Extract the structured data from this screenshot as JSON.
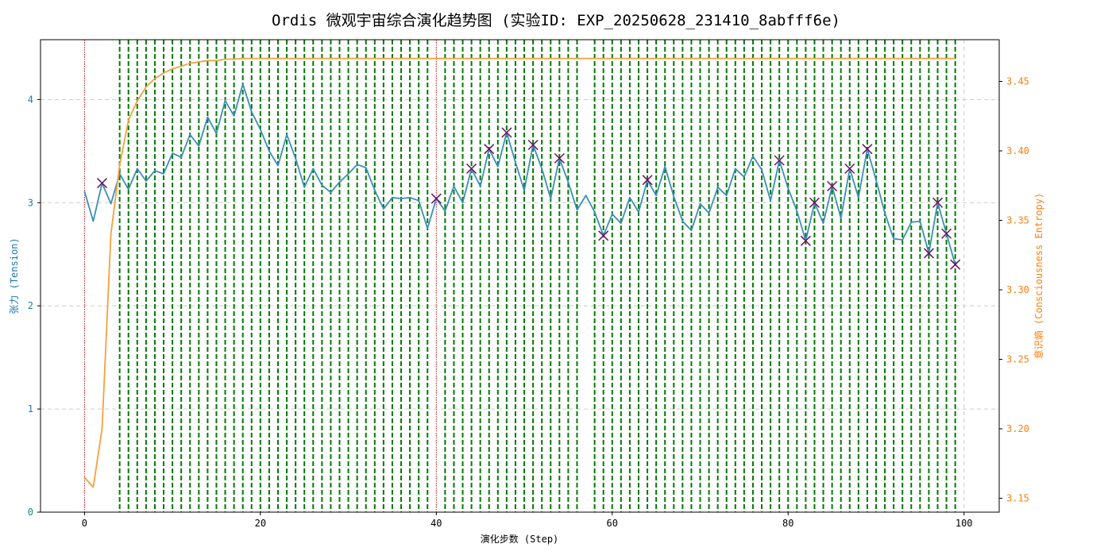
{
  "chart_data": {
    "type": "line",
    "title": "Ordis 微观宇宙综合演化趋势图 (实验ID: EXP_20250628_231410_8abfff6e)",
    "xlabel": "演化步数 (Step)",
    "ylabel_left": "张力 (Tension)",
    "ylabel_right": "意识熵 (Consciousness Entropy)",
    "xlim": [
      -5,
      104
    ],
    "ylim_left": [
      0,
      4.58
    ],
    "ylim_right": [
      3.14,
      3.48
    ],
    "x_ticks": [
      0,
      20,
      40,
      60,
      80,
      100
    ],
    "y_ticks_left": [
      0,
      1,
      2,
      3,
      4
    ],
    "y_ticks_right": [
      3.15,
      3.2,
      3.25,
      3.3,
      3.35,
      3.4,
      3.45
    ],
    "grid": true,
    "colors": {
      "tension": "#3a8fb7",
      "entropy": "#f4a03c",
      "left_axis_label": "#1f77b4",
      "right_axis_label": "#ff7f0e",
      "event_line": "#007a00",
      "red_marker_line": "#e02020",
      "x_marker": "#6b1060",
      "grid": "#cccccc"
    },
    "series": [
      {
        "name": "张力 (Tension)",
        "axis": "left",
        "x": [
          0,
          1,
          2,
          3,
          4,
          5,
          6,
          7,
          8,
          9,
          10,
          11,
          12,
          13,
          14,
          15,
          16,
          17,
          18,
          19,
          20,
          21,
          22,
          23,
          24,
          25,
          26,
          27,
          28,
          29,
          30,
          31,
          32,
          33,
          34,
          35,
          36,
          37,
          38,
          39,
          40,
          41,
          42,
          43,
          44,
          45,
          46,
          47,
          48,
          49,
          50,
          51,
          52,
          53,
          54,
          55,
          56,
          57,
          58,
          59,
          60,
          61,
          62,
          63,
          64,
          65,
          66,
          67,
          68,
          69,
          70,
          71,
          72,
          73,
          74,
          75,
          76,
          77,
          78,
          79,
          80,
          81,
          82,
          83,
          84,
          85,
          86,
          87,
          88,
          89,
          90,
          91,
          92,
          93,
          94,
          95,
          96,
          97,
          98,
          99
        ],
        "values": [
          3.11,
          2.82,
          3.19,
          2.99,
          3.28,
          3.13,
          3.33,
          3.21,
          3.31,
          3.28,
          3.48,
          3.44,
          3.66,
          3.55,
          3.83,
          3.67,
          3.99,
          3.84,
          4.15,
          3.88,
          3.71,
          3.5,
          3.36,
          3.66,
          3.43,
          3.15,
          3.33,
          3.17,
          3.1,
          3.2,
          3.28,
          3.37,
          3.34,
          3.12,
          2.94,
          3.05,
          3.04,
          3.05,
          3.02,
          2.75,
          3.04,
          2.92,
          3.16,
          3.0,
          3.33,
          3.16,
          3.52,
          3.35,
          3.68,
          3.39,
          3.12,
          3.56,
          3.33,
          3.04,
          3.43,
          3.2,
          2.93,
          3.07,
          2.91,
          2.68,
          2.89,
          2.8,
          3.05,
          2.91,
          3.22,
          3.07,
          3.35,
          3.06,
          2.82,
          2.73,
          2.99,
          2.9,
          3.15,
          3.07,
          3.33,
          3.25,
          3.45,
          3.32,
          3.02,
          3.41,
          3.14,
          2.92,
          2.63,
          3.0,
          2.8,
          3.16,
          2.85,
          3.33,
          3.05,
          3.52,
          3.22,
          2.9,
          2.65,
          2.64,
          2.81,
          2.82,
          2.51,
          3.0,
          2.7,
          2.4
        ]
      },
      {
        "name": "意识熵 (Consciousness Entropy)",
        "axis": "right",
        "x": [
          0,
          1,
          2,
          3,
          4,
          5,
          6,
          7,
          8,
          9,
          10,
          11,
          12,
          13,
          14,
          15,
          16,
          17,
          18,
          19,
          20,
          99
        ],
        "values": [
          3.165,
          3.158,
          3.2,
          3.34,
          3.39,
          3.422,
          3.436,
          3.446,
          3.452,
          3.456,
          3.459,
          3.461,
          3.463,
          3.464,
          3.465,
          3.465,
          3.466,
          3.466,
          3.4665,
          3.4665,
          3.4665,
          3.4665
        ]
      }
    ],
    "event_lines_x": [
      4,
      5,
      6,
      7,
      8,
      9,
      10,
      11,
      12,
      13,
      14,
      15,
      16,
      17,
      18,
      19,
      20,
      21,
      22,
      23,
      24,
      25,
      26,
      27,
      28,
      29,
      30,
      31,
      32,
      33,
      34,
      35,
      36,
      37,
      38,
      39,
      41,
      42,
      43,
      44,
      45,
      46,
      47,
      48,
      49,
      50,
      51,
      52,
      53,
      54,
      55,
      56,
      58,
      59,
      60,
      61,
      62,
      63,
      64,
      65,
      66,
      67,
      68,
      69,
      70,
      71,
      72,
      73,
      74,
      75,
      76,
      77,
      78,
      79,
      80,
      81,
      82,
      83,
      84,
      85,
      86,
      87,
      88,
      89,
      90,
      91,
      92,
      93,
      94,
      95,
      96,
      97,
      98,
      99
    ],
    "red_lines_x": [
      0,
      40
    ],
    "x_markers": [
      {
        "x": 2,
        "y": 3.19
      },
      {
        "x": 40,
        "y": 3.04
      },
      {
        "x": 44,
        "y": 3.33
      },
      {
        "x": 46,
        "y": 3.52
      },
      {
        "x": 48,
        "y": 3.68
      },
      {
        "x": 51,
        "y": 3.56
      },
      {
        "x": 54,
        "y": 3.43
      },
      {
        "x": 59,
        "y": 2.68
      },
      {
        "x": 64,
        "y": 3.22
      },
      {
        "x": 79,
        "y": 3.41
      },
      {
        "x": 82,
        "y": 2.63
      },
      {
        "x": 83,
        "y": 3.0
      },
      {
        "x": 85,
        "y": 3.16
      },
      {
        "x": 87,
        "y": 3.33
      },
      {
        "x": 89,
        "y": 3.52
      },
      {
        "x": 96,
        "y": 2.51
      },
      {
        "x": 97,
        "y": 3.0
      },
      {
        "x": 98,
        "y": 2.7
      },
      {
        "x": 99,
        "y": 2.4
      }
    ]
  }
}
